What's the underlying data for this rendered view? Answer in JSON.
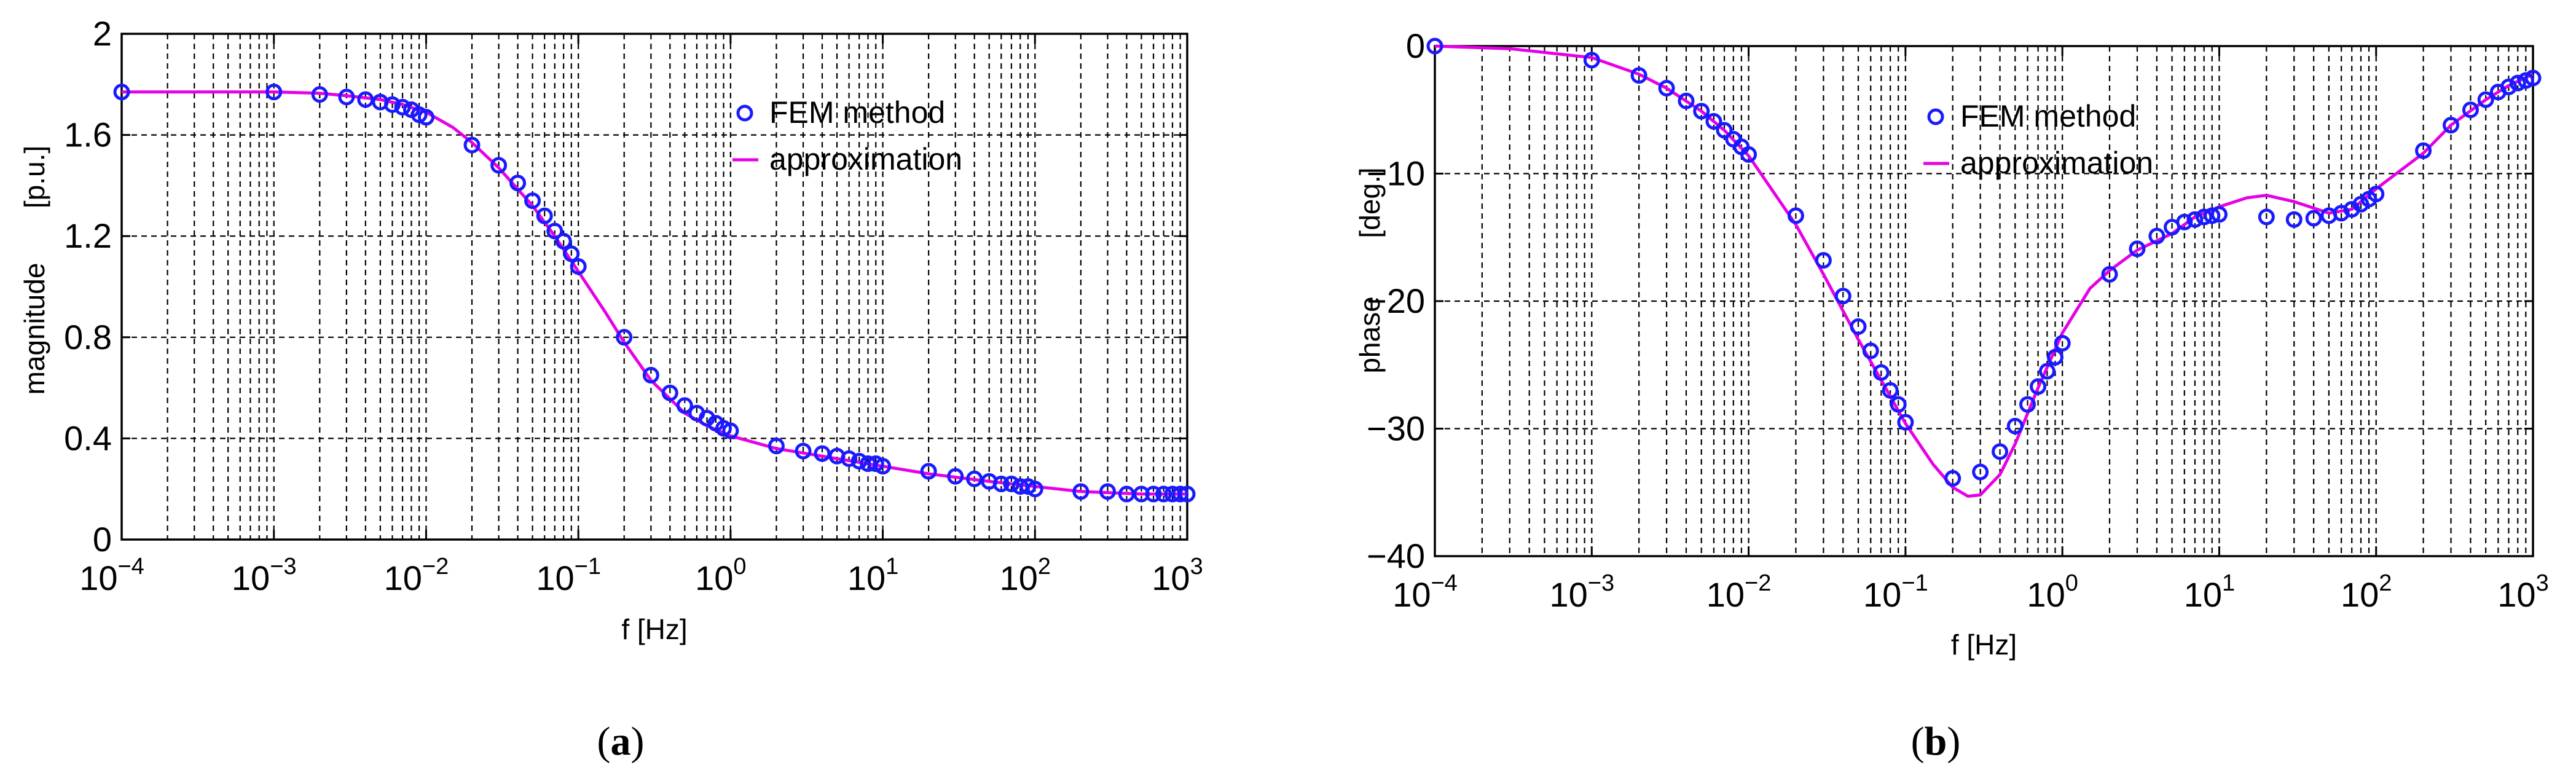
{
  "captions": {
    "a": {
      "open": "(",
      "letter": "a",
      "close": ")"
    },
    "b": {
      "open": "(",
      "letter": "b",
      "close": ")"
    }
  },
  "chart_data": [
    {
      "type": "line",
      "panel": "a",
      "xlabel": "f [Hz]",
      "ylabel_left": "magnitude",
      "ylabel_right": "[p.u.]",
      "xscale": "log",
      "xlim": [
        0.0001,
        1000
      ],
      "ylim": [
        0,
        2
      ],
      "yticks": [
        0,
        0.4,
        0.8,
        1.2,
        1.6,
        2
      ],
      "ytick_labels": [
        "0",
        "0.4",
        "0.8",
        "1.2",
        "1.6",
        "2"
      ],
      "xticks_base": "10",
      "xticks_exponents": [
        "−4",
        "−3",
        "−2",
        "−1",
        "0",
        "1",
        "2",
        "3"
      ],
      "grid": true,
      "legend_position": "top-right",
      "colors": {
        "markers": "#1a1aff",
        "line": "#e600e6"
      },
      "series": [
        {
          "name": "FEM method",
          "kind": "markers",
          "x": [
            0.0001,
            0.001,
            0.002,
            0.003,
            0.004,
            0.005,
            0.006,
            0.007,
            0.008,
            0.009,
            0.01,
            0.02,
            0.03,
            0.04,
            0.05,
            0.06,
            0.07,
            0.08,
            0.09,
            0.1,
            0.2,
            0.3,
            0.4,
            0.5,
            0.6,
            0.7,
            0.8,
            0.9,
            1,
            2,
            3,
            4,
            5,
            6,
            7,
            8,
            9,
            10,
            20,
            30,
            40,
            50,
            60,
            70,
            80,
            90,
            100,
            200,
            300,
            400,
            500,
            600,
            700,
            800,
            900,
            1000
          ],
          "y": [
            1.77,
            1.77,
            1.76,
            1.75,
            1.74,
            1.73,
            1.72,
            1.71,
            1.7,
            1.68,
            1.67,
            1.56,
            1.48,
            1.41,
            1.34,
            1.28,
            1.22,
            1.18,
            1.13,
            1.08,
            0.8,
            0.65,
            0.58,
            0.53,
            0.5,
            0.48,
            0.46,
            0.44,
            0.43,
            0.37,
            0.35,
            0.34,
            0.33,
            0.32,
            0.31,
            0.3,
            0.3,
            0.29,
            0.27,
            0.25,
            0.24,
            0.23,
            0.22,
            0.22,
            0.21,
            0.21,
            0.2,
            0.19,
            0.19,
            0.18,
            0.18,
            0.18,
            0.18,
            0.18,
            0.18,
            0.18
          ]
        },
        {
          "name": "approximation",
          "kind": "line",
          "x": [
            0.0001,
            0.001,
            0.002,
            0.003,
            0.005,
            0.007,
            0.01,
            0.015,
            0.02,
            0.03,
            0.05,
            0.07,
            0.1,
            0.15,
            0.2,
            0.3,
            0.5,
            0.7,
            1,
            2,
            5,
            10,
            20,
            50,
            100,
            200,
            500,
            1000
          ],
          "y": [
            1.77,
            1.77,
            1.765,
            1.755,
            1.74,
            1.72,
            1.69,
            1.63,
            1.57,
            1.47,
            1.32,
            1.2,
            1.06,
            0.9,
            0.78,
            0.63,
            0.5,
            0.45,
            0.41,
            0.36,
            0.32,
            0.29,
            0.26,
            0.23,
            0.21,
            0.19,
            0.18,
            0.18
          ]
        }
      ]
    },
    {
      "type": "line",
      "panel": "b",
      "xlabel": "f [Hz]",
      "ylabel_left": "phase",
      "ylabel_right": "[deg.]",
      "xscale": "log",
      "xlim": [
        0.0001,
        1000
      ],
      "ylim": [
        -40,
        0
      ],
      "yticks": [
        -40,
        -30,
        -20,
        -10,
        0
      ],
      "ytick_labels": [
        "−40",
        "−30",
        "−20",
        "−10",
        "0"
      ],
      "xticks_base": "10",
      "xticks_exponents": [
        "−4",
        "−3",
        "−2",
        "−1",
        "0",
        "1",
        "2",
        "3"
      ],
      "grid": true,
      "legend_position": "top-right",
      "colors": {
        "markers": "#1a1aff",
        "line": "#e600e6"
      },
      "series": [
        {
          "name": "FEM method",
          "kind": "markers",
          "x": [
            0.0001,
            0.001,
            0.002,
            0.003,
            0.004,
            0.005,
            0.006,
            0.007,
            0.008,
            0.009,
            0.01,
            0.02,
            0.03,
            0.04,
            0.05,
            0.06,
            0.07,
            0.08,
            0.09,
            0.1,
            0.2,
            0.3,
            0.4,
            0.5,
            0.6,
            0.7,
            0.8,
            0.9,
            1,
            2,
            3,
            4,
            5,
            6,
            7,
            8,
            9,
            10,
            20,
            30,
            40,
            50,
            60,
            70,
            80,
            90,
            100,
            200,
            300,
            400,
            500,
            600,
            700,
            800,
            900,
            1000
          ],
          "y": [
            0,
            -1.1,
            -2.3,
            -3.3,
            -4.3,
            -5.1,
            -5.9,
            -6.6,
            -7.3,
            -7.9,
            -8.5,
            -13.3,
            -16.8,
            -19.6,
            -22.0,
            -23.9,
            -25.6,
            -27.0,
            -28.1,
            -29.5,
            -33.9,
            -33.4,
            -31.8,
            -29.8,
            -28.1,
            -26.7,
            -25.5,
            -24.4,
            -23.3,
            -17.9,
            -15.9,
            -14.9,
            -14.2,
            -13.8,
            -13.6,
            -13.4,
            -13.3,
            -13.2,
            -13.4,
            -13.6,
            -13.5,
            -13.3,
            -13.1,
            -12.8,
            -12.4,
            -12.0,
            -11.6,
            -8.2,
            -6.2,
            -5.0,
            -4.2,
            -3.6,
            -3.2,
            -2.9,
            -2.7,
            -2.5
          ]
        },
        {
          "name": "approximation",
          "kind": "line",
          "x": [
            0.0001,
            0.0003,
            0.001,
            0.002,
            0.003,
            0.005,
            0.007,
            0.01,
            0.02,
            0.03,
            0.05,
            0.07,
            0.1,
            0.15,
            0.2,
            0.25,
            0.3,
            0.4,
            0.5,
            0.7,
            1,
            1.5,
            2,
            3,
            5,
            7,
            10,
            15,
            20,
            30,
            50,
            70,
            100,
            200,
            300,
            500,
            700,
            1000
          ],
          "y": [
            0,
            -0.2,
            -0.9,
            -2.2,
            -3.3,
            -5.1,
            -6.6,
            -8.6,
            -14.0,
            -17.9,
            -23.0,
            -26.2,
            -29.6,
            -32.8,
            -34.6,
            -35.3,
            -35.2,
            -33.6,
            -31.2,
            -26.8,
            -22.5,
            -19.0,
            -17.6,
            -16.0,
            -14.7,
            -13.4,
            -12.6,
            -11.9,
            -11.7,
            -12.2,
            -13.1,
            -12.8,
            -11.2,
            -8.4,
            -6.2,
            -4.2,
            -3.1,
            -2.2
          ]
        }
      ]
    }
  ]
}
